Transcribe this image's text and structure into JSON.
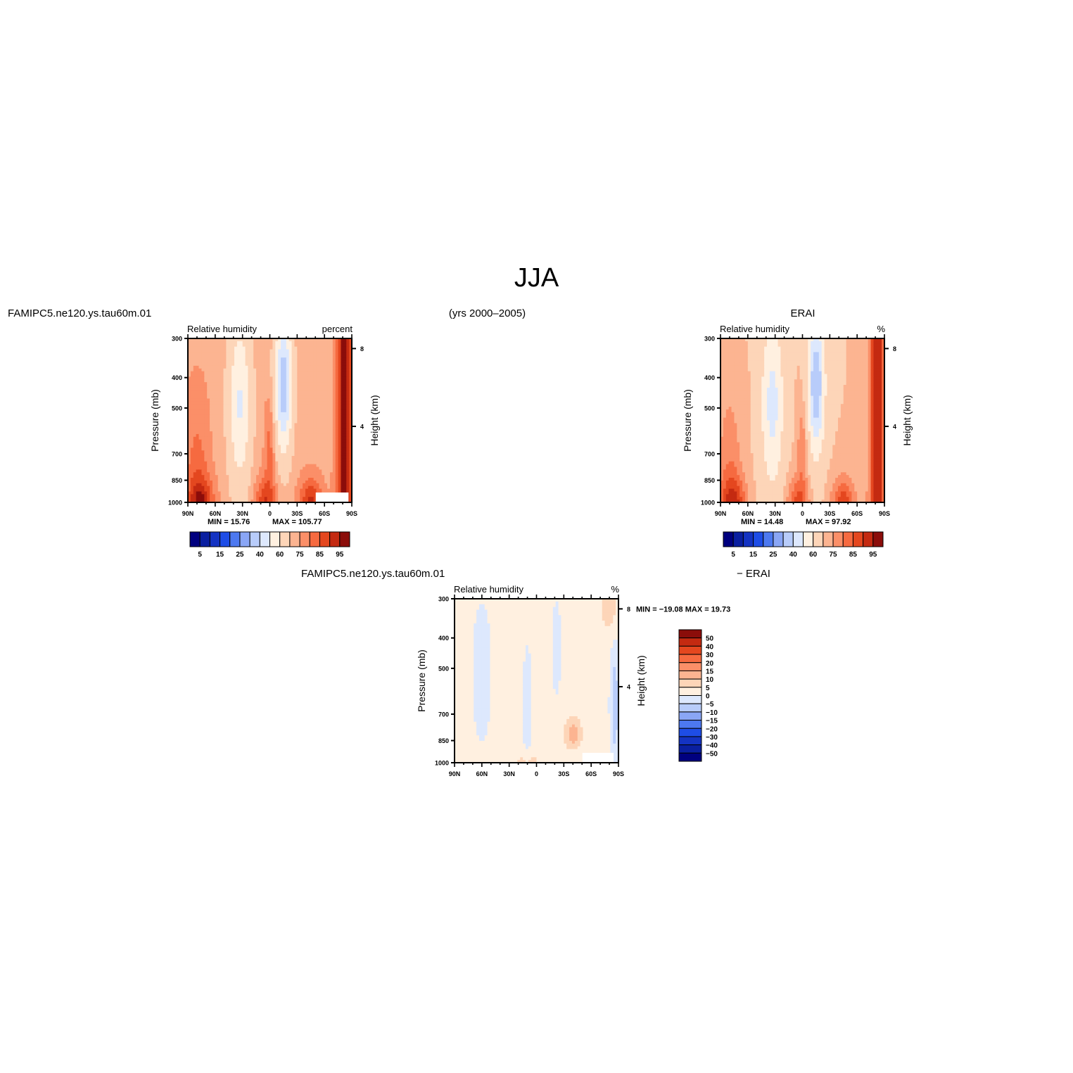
{
  "page": {
    "title": "JJA",
    "subtitle": "(yrs 2000–2005)",
    "left_case": "FAMIPC5.ne120.ys.tau60m.01",
    "right_case": "ERAI",
    "diff_case_left": "FAMIPC5.ne120.ys.tau60m.01",
    "diff_case_right": "− ERAI"
  },
  "chart_data": [
    {
      "type": "heatmap",
      "panel": "model",
      "case": "FAMIPC5.ne120.ys.tau60m.01",
      "variable": "Relative humidity",
      "units": "percent",
      "ylabel": "Pressure (mb)",
      "ylabel_right": "Height (km)",
      "x_ticks": [
        "90N",
        "60N",
        "30N",
        "0",
        "30S",
        "60S",
        "90S"
      ],
      "y_ticks": [
        "300",
        "400",
        "500",
        "700",
        "850",
        "1000"
      ],
      "y_ticks_right": [
        "8",
        "4"
      ],
      "ylim": [
        1000,
        300
      ],
      "xlim": [
        90,
        -90
      ],
      "min_text": "MIN =   15.76",
      "max_text": "MAX = 105.77",
      "min": 15.76,
      "max": 105.77,
      "colorbar_labels": [
        "5",
        "15",
        "25",
        "40",
        "60",
        "75",
        "85",
        "95"
      ],
      "colors": [
        "#00007f",
        "#0a1fa0",
        "#1433c2",
        "#1e4de6",
        "#4d79f0",
        "#8aa6f5",
        "#b8ccfa",
        "#dde8fd",
        "#fff0e0",
        "#fdd5b8",
        "#fcb491",
        "#fb8f68",
        "#f66a40",
        "#e4471f",
        "#c42a11",
        "#8b0d0a"
      ]
    },
    {
      "type": "heatmap",
      "panel": "obs",
      "case": "ERAI",
      "variable": "Relative humidity",
      "units": "%",
      "ylabel": "Pressure (mb)",
      "ylabel_right": "Height (km)",
      "x_ticks": [
        "90N",
        "60N",
        "30N",
        "0",
        "30S",
        "60S",
        "90S"
      ],
      "y_ticks": [
        "300",
        "400",
        "500",
        "700",
        "850",
        "1000"
      ],
      "y_ticks_right": [
        "8",
        "4"
      ],
      "ylim": [
        1000,
        300
      ],
      "xlim": [
        90,
        -90
      ],
      "min_text": "MIN =   14.48",
      "max_text": "MAX =   97.92",
      "min": 14.48,
      "max": 97.92,
      "colorbar_labels": [
        "5",
        "15",
        "25",
        "40",
        "60",
        "75",
        "85",
        "95"
      ],
      "colors": [
        "#00007f",
        "#0a1fa0",
        "#1433c2",
        "#1e4de6",
        "#4d79f0",
        "#8aa6f5",
        "#b8ccfa",
        "#dde8fd",
        "#fff0e0",
        "#fdd5b8",
        "#fcb491",
        "#fb8f68",
        "#f66a40",
        "#e4471f",
        "#c42a11",
        "#8b0d0a"
      ]
    },
    {
      "type": "heatmap",
      "panel": "difference",
      "case": "FAMIPC5.ne120.ys.tau60m.01 − ERAI",
      "variable": "Relative humidity",
      "units": "%",
      "ylabel": "Pressure (mb)",
      "ylabel_right": "Height (km)",
      "x_ticks": [
        "90N",
        "60N",
        "30N",
        "0",
        "30S",
        "60S",
        "90S"
      ],
      "y_ticks": [
        "300",
        "400",
        "500",
        "700",
        "850",
        "1000"
      ],
      "y_ticks_right": [
        "8",
        "4"
      ],
      "ylim": [
        1000,
        300
      ],
      "xlim": [
        90,
        -90
      ],
      "minmax_text": "MIN = −19.08   MAX =   19.73",
      "min": -19.08,
      "max": 19.73,
      "colorbar_labels": [
        "50",
        "40",
        "30",
        "20",
        "15",
        "10",
        "5",
        "0",
        "−5",
        "−10",
        "−15",
        "−20",
        "−30",
        "−40",
        "−50"
      ],
      "colors": [
        "#8b0d0a",
        "#c42a11",
        "#e4471f",
        "#f66a40",
        "#fb8f68",
        "#fcb491",
        "#fdd5b8",
        "#fff0e0",
        "#dde8fd",
        "#b8ccfa",
        "#8aa6f5",
        "#4d79f0",
        "#1e4de6",
        "#1433c2",
        "#0a1fa0",
        "#00007f"
      ]
    }
  ]
}
